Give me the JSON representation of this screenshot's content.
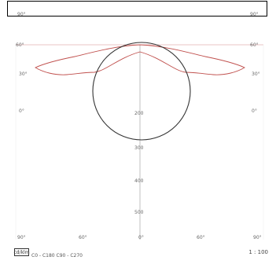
{
  "title": "",
  "axis_labels": {
    "top_left": "90°",
    "top_right": "90°",
    "row_60_left": "60°",
    "row_60_right": "60°",
    "row_30_left": "30°",
    "row_30_right": "30°",
    "row_0_left": "0°",
    "row_0_right": "0°",
    "bottom": [
      "90°",
      "60°",
      "0°",
      "60°",
      "90°"
    ],
    "center_values": [
      "200",
      "300",
      "400",
      "500"
    ]
  },
  "footer": {
    "scale_label": "cd/klm",
    "legend_text": "C0 - C180    C90 - C270",
    "right_text": "1 : 100"
  },
  "colors": {
    "curve_red": "#c0504d",
    "curve_dark": "#333333",
    "grid": "#bbbbbb"
  }
}
